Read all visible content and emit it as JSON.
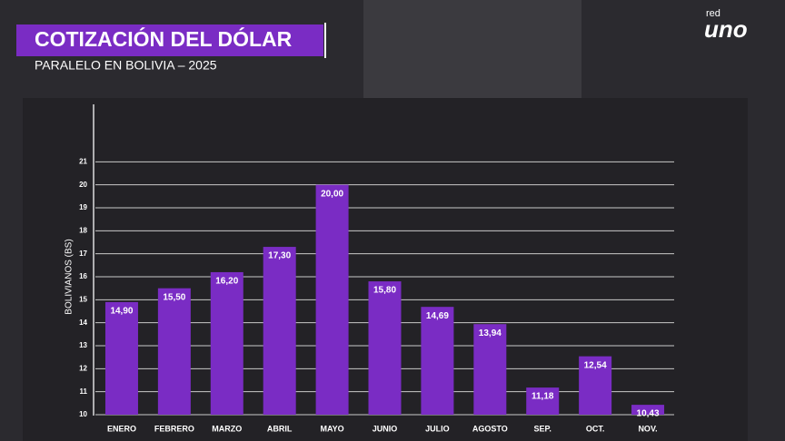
{
  "chart_data": {
    "type": "bar",
    "title": "COTIZACIÓN DEL DÓLAR",
    "subtitle": "PARALELO EN BOLIVIA – 2025",
    "y_label": "BOLIVIANOS (BS)",
    "categories": [
      "ENERO",
      "FEBRERO",
      "MARZO",
      "ABRIL",
      "MAYO",
      "JUNIO",
      "JULIO",
      "AGOSTO",
      "SEP.",
      "OCT.",
      "NOV."
    ],
    "values": [
      14.9,
      15.5,
      16.2,
      17.3,
      20.0,
      15.8,
      14.69,
      13.94,
      11.18,
      12.54,
      10.43
    ],
    "value_labels": [
      "14,90",
      "15,50",
      "16,20",
      "17,30",
      "20,00",
      "15,80",
      "14,69",
      "13,94",
      "11,18",
      "12,54",
      "10,43"
    ],
    "color": "#7a2cc4",
    "ylim": [
      10,
      23.5
    ],
    "yticks": [
      10,
      11,
      12,
      13,
      14,
      15,
      16,
      17,
      18,
      19,
      20,
      21
    ],
    "grid": true
  },
  "logo": {
    "small": "red",
    "main": "uno"
  }
}
